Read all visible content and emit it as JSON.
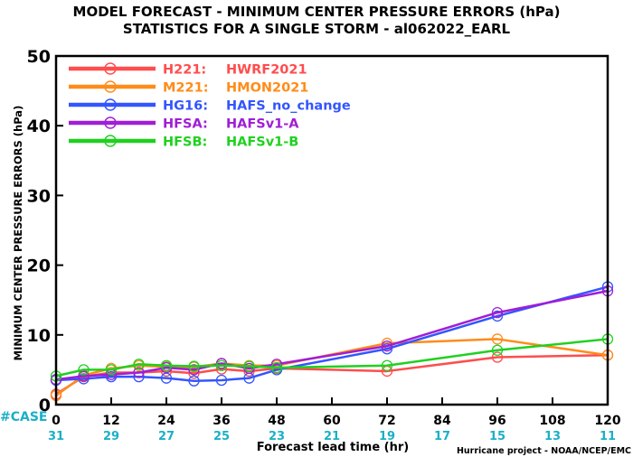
{
  "colors": {
    "H221": "#ff4d4d",
    "M221": "#ff8c1a",
    "HG16": "#3355ff",
    "HFSA": "#a01ed6",
    "HFSB": "#1fd11f",
    "case": "#1ab0c8",
    "axis": "#000000"
  },
  "chart_data": {
    "type": "line",
    "title": "MODEL FORECAST - MINIMUM CENTER PRESSURE ERRORS (hPa)",
    "subtitle": "STATISTICS FOR A SINGLE STORM - al062022_EARL",
    "xlabel": "Forecast lead time (hr)",
    "ylabel": "MINIMUM CENTER PRESSURE ERRORS (hPa)",
    "ylim": [
      0,
      50
    ],
    "xlim": [
      0,
      120
    ],
    "xticks": [
      0,
      12,
      24,
      36,
      48,
      60,
      72,
      84,
      96,
      108,
      120
    ],
    "yticks": [
      0,
      10,
      20,
      30,
      40,
      50
    ],
    "legend_position": "top-left",
    "case_label": "#CASE",
    "case_counts": [
      31,
      29,
      27,
      25,
      23,
      21,
      19,
      17,
      15,
      13,
      11
    ],
    "credit": "Hurricane project - NOAA/NCEP/EMC",
    "series": [
      {
        "id": "H221",
        "name": "H221:",
        "desc": "HWRF2021",
        "color_key": "H221",
        "x": [
          0,
          6,
          12,
          18,
          24,
          30,
          36,
          42,
          48,
          72,
          96,
          120
        ],
        "y": [
          1.5,
          4.0,
          4.6,
          4.6,
          4.8,
          4.5,
          5.1,
          4.8,
          5.2,
          4.8,
          6.8,
          7.1
        ]
      },
      {
        "id": "M221",
        "name": "M221:",
        "desc": "HMON2021",
        "color_key": "M221",
        "x": [
          0,
          6,
          12,
          18,
          24,
          30,
          36,
          42,
          48,
          72,
          96,
          120
        ],
        "y": [
          1.3,
          4.2,
          5.2,
          5.6,
          5.4,
          5.4,
          5.9,
          5.6,
          5.6,
          8.8,
          9.4,
          7.1
        ]
      },
      {
        "id": "HG16",
        "name": "HG16:",
        "desc": "HAFS_no_change",
        "color_key": "HG16",
        "x": [
          0,
          6,
          12,
          18,
          24,
          30,
          36,
          42,
          48,
          72,
          96,
          120
        ],
        "y": [
          3.5,
          3.7,
          4.0,
          4.0,
          3.8,
          3.4,
          3.5,
          3.8,
          5.0,
          8.0,
          12.7,
          16.9
        ]
      },
      {
        "id": "HFSA",
        "name": "HFSA:",
        "desc": "HAFSv1-A",
        "color_key": "HFSA",
        "x": [
          0,
          6,
          12,
          18,
          24,
          30,
          36,
          42,
          48,
          72,
          96,
          120
        ],
        "y": [
          3.6,
          4.1,
          4.3,
          4.6,
          5.3,
          5.0,
          5.9,
          5.2,
          5.8,
          8.4,
          13.2,
          16.3
        ]
      },
      {
        "id": "HFSB",
        "name": "HFSB:",
        "desc": "HAFSv1-B",
        "color_key": "HFSB",
        "x": [
          0,
          6,
          12,
          18,
          24,
          30,
          36,
          42,
          48,
          72,
          96,
          120
        ],
        "y": [
          4.1,
          5.0,
          5.0,
          5.8,
          5.6,
          5.5,
          5.6,
          5.5,
          5.3,
          5.6,
          7.8,
          9.4
        ]
      }
    ]
  }
}
